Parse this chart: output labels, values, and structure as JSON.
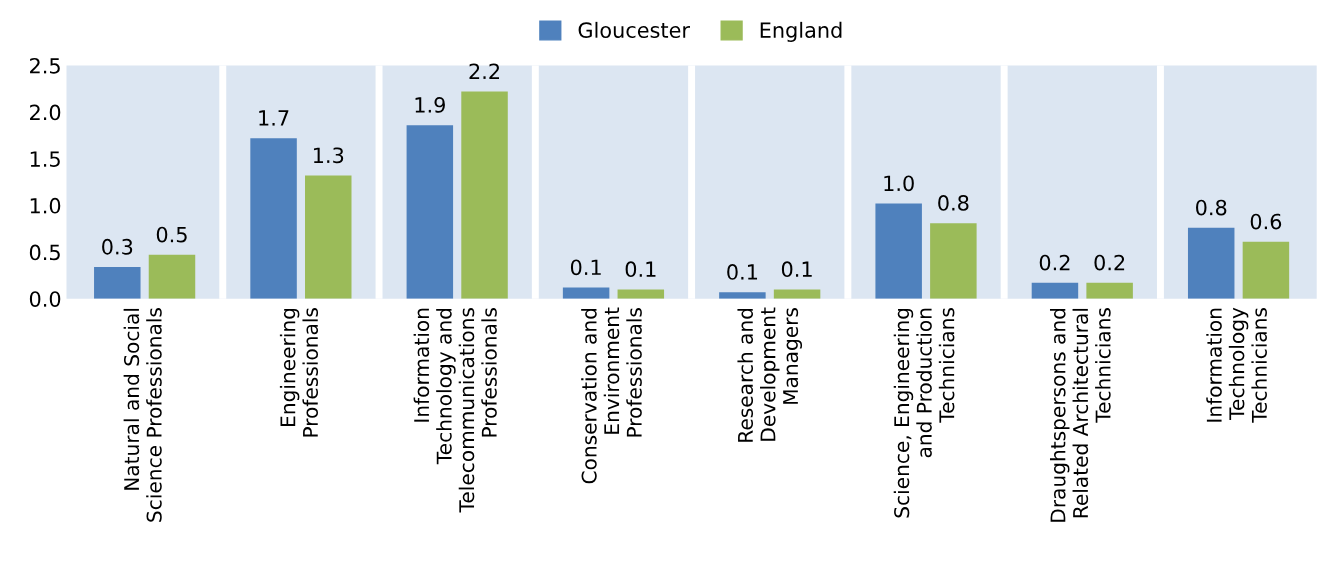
{
  "chart_data": {
    "type": "bar",
    "categories": [
      "Natural and Social\nScience Professionals",
      "Engineering\nProfessionals",
      "Information\nTechnology and\nTelecommunications\nProfessionals",
      "Conservation and\nEnvironment\nProfessionals",
      "Research and\nDevelopment\nManagers",
      "Science, Engineering\nand Production\nTechnicians",
      "Draughtspersons and\nRelated Architectural\nTechnicians",
      "Information\nTechnology\nTechnicians"
    ],
    "series": [
      {
        "name": "Gloucester",
        "color": "#4f81bd",
        "values": [
          0.34,
          1.72,
          1.86,
          0.12,
          0.07,
          1.02,
          0.17,
          0.76
        ],
        "value_labels": [
          "0.3",
          "1.7",
          "1.9",
          "0.1",
          "0.1",
          "1.0",
          "0.2",
          "0.8"
        ]
      },
      {
        "name": "England",
        "color": "#9bbb59",
        "values": [
          0.47,
          1.32,
          2.22,
          0.1,
          0.1,
          0.81,
          0.17,
          0.61
        ],
        "value_labels": [
          "0.5",
          "1.3",
          "2.2",
          "0.1",
          "0.1",
          "0.8",
          "0.2",
          "0.6"
        ]
      }
    ],
    "ylim": [
      0,
      2.5
    ],
    "yticks": [
      {
        "value": 0,
        "label": "0.0"
      },
      0.5,
      {
        "value": 1,
        "label": "1.0"
      },
      1.5,
      {
        "value": 2,
        "label": "2.0"
      },
      2.5
    ],
    "grid": "x",
    "legend": "top"
  }
}
